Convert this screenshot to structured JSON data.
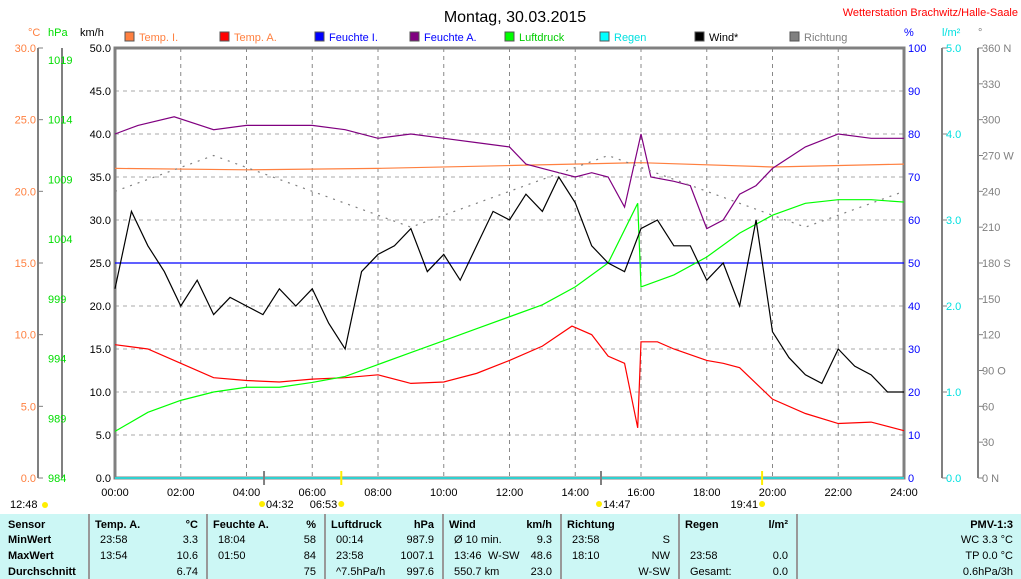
{
  "title": "Montag, 30.03.2015",
  "station": "Wetterstation Brachwitz/Halle-Saale",
  "units": {
    "c": "°C",
    "hpa": "hPa",
    "kmh": "km/h",
    "pct": "%",
    "lm2": "l/m²",
    "deg": "°"
  },
  "legend": [
    {
      "label": "Temp. I.",
      "color": "#ff8040",
      "text": "#ff8040"
    },
    {
      "label": "Temp. A.",
      "color": "#ff0000",
      "text": "#ff8040"
    },
    {
      "label": "Feuchte I.",
      "color": "#0000ff",
      "text": "#0000ff"
    },
    {
      "label": "Feuchte A.",
      "color": "#800080",
      "text": "#0000ff"
    },
    {
      "label": "Luftdruck",
      "color": "#00ff00",
      "text": "#00cc00"
    },
    {
      "label": "Regen",
      "color": "#00ffff",
      "text": "#00e0e0"
    },
    {
      "label": "Wind*",
      "color": "#000000",
      "text": "#000000"
    },
    {
      "label": "Richtung",
      "color": "#808080",
      "text": "#808080"
    }
  ],
  "chart_data": {
    "type": "line",
    "x_ticks": [
      "00:00",
      "02:00",
      "04:00",
      "06:00",
      "08:00",
      "10:00",
      "12:00",
      "14:00",
      "16:00",
      "18:00",
      "20:00",
      "22:00",
      "24:00"
    ],
    "xlim": [
      0,
      24
    ],
    "grid": true,
    "legend_placement": "top",
    "axes": {
      "temp": {
        "ticks": [
          "0.0",
          "5.0",
          "10.0",
          "15.0",
          "20.0",
          "25.0",
          "30.0"
        ],
        "ylim": [
          0,
          30
        ]
      },
      "hpa": {
        "ticks": [
          "984",
          "989",
          "994",
          "999",
          "1004",
          "1009",
          "1014",
          "1019"
        ],
        "ylim": [
          984,
          1020
        ]
      },
      "kmh": {
        "ticks": [
          "0.0",
          "5.0",
          "10.0",
          "15.0",
          "20.0",
          "25.0",
          "30.0",
          "35.0",
          "40.0",
          "45.0",
          "50.0"
        ],
        "ylim": [
          0,
          50
        ]
      },
      "pct": {
        "ticks": [
          "0",
          "10",
          "20",
          "30",
          "40",
          "50",
          "60",
          "70",
          "80",
          "90",
          "100"
        ],
        "ylim": [
          0,
          100
        ]
      },
      "rain": {
        "ticks": [
          "0.0",
          "1.0",
          "2.0",
          "3.0",
          "4.0",
          "5.0"
        ],
        "ylim": [
          0,
          5
        ]
      },
      "dir": {
        "ticks": [
          "0 N",
          "30",
          "60",
          "90 O",
          "120",
          "150",
          "180 S",
          "210",
          "240",
          "270 W",
          "300",
          "330",
          "360 N"
        ],
        "ylim": [
          0,
          360
        ]
      }
    },
    "series": [
      {
        "name": "Temp. I.",
        "axis": "temp",
        "color": "#ff8040",
        "x": [
          0,
          4,
          8,
          12,
          16,
          20,
          24
        ],
        "y": [
          21.6,
          21.5,
          21.6,
          21.8,
          22.0,
          21.7,
          21.9
        ]
      },
      {
        "name": "Temp. A.",
        "axis": "temp",
        "color": "#ff0000",
        "x": [
          0,
          1,
          2,
          3,
          4,
          5,
          6,
          7,
          8,
          9,
          10,
          11,
          12,
          13,
          13.9,
          14.5,
          15,
          15.5,
          15.9,
          16,
          16.5,
          17,
          18,
          18.5,
          19,
          20,
          21,
          22,
          23,
          24
        ],
        "y": [
          9.3,
          9.0,
          8.0,
          7.0,
          6.8,
          6.7,
          6.9,
          7.0,
          7.2,
          6.6,
          6.7,
          7.3,
          8.2,
          9.2,
          10.6,
          10.0,
          8.5,
          8.0,
          3.5,
          9.5,
          9.5,
          9.0,
          8.2,
          8.0,
          7.7,
          5.5,
          4.5,
          3.8,
          3.9,
          3.3
        ]
      },
      {
        "name": "Feuchte I.",
        "axis": "pct",
        "color": "#0000ff",
        "x": [
          0,
          6,
          12,
          18,
          24
        ],
        "y": [
          50,
          50,
          50,
          50,
          50
        ]
      },
      {
        "name": "Feuchte A.",
        "axis": "pct",
        "color": "#800080",
        "x": [
          0,
          0.7,
          1.8,
          3,
          4,
          5,
          6,
          7,
          8,
          9,
          10,
          11,
          12,
          12.5,
          13,
          14,
          14.5,
          15,
          15.5,
          16,
          16.3,
          17,
          17.5,
          18,
          18.5,
          19,
          19.5,
          20,
          21,
          22,
          23,
          24
        ],
        "y": [
          80,
          82,
          84,
          81,
          82,
          82,
          82,
          81,
          79,
          80,
          79,
          78,
          77,
          73,
          72,
          70,
          71,
          70,
          63,
          80,
          70,
          69,
          68,
          58,
          60,
          66,
          68,
          72,
          77,
          80,
          79,
          79
        ]
      },
      {
        "name": "Luftdruck",
        "axis": "hpa",
        "color": "#00ff00",
        "x": [
          0,
          1,
          2,
          3,
          4,
          5,
          6,
          7,
          8,
          9,
          10,
          11,
          12,
          13,
          14,
          15,
          15.9,
          16,
          17,
          18,
          19,
          20,
          21,
          22,
          23,
          24
        ],
        "y": [
          987.9,
          989.5,
          990.5,
          991.2,
          991.6,
          991.6,
          992,
          992.5,
          993.5,
          994.5,
          995.5,
          996.5,
          997.5,
          998.5,
          1000,
          1002,
          1007,
          1000,
          1001,
          1002.5,
          1004.5,
          1006,
          1007,
          1007.3,
          1007.3,
          1007.1
        ]
      },
      {
        "name": "Regen",
        "axis": "rain",
        "color": "#00ffff",
        "x": [
          0,
          24
        ],
        "y": [
          0,
          0
        ]
      },
      {
        "name": "Wind*",
        "axis": "kmh",
        "color": "#000000",
        "x": [
          0,
          0.5,
          1,
          1.5,
          2,
          2.5,
          3,
          3.5,
          4,
          4.5,
          5,
          5.5,
          6,
          6.5,
          7,
          7.5,
          8,
          8.5,
          9,
          9.5,
          10,
          10.5,
          11,
          11.5,
          12,
          12.5,
          13,
          13.5,
          14,
          14.5,
          15,
          15.5,
          16,
          16.5,
          17,
          17.5,
          18,
          18.5,
          19,
          19.5,
          20,
          20.5,
          21,
          21.5,
          22,
          22.5,
          23,
          23.5,
          24
        ],
        "y": [
          22,
          31,
          27,
          24,
          20,
          23,
          19,
          21,
          20,
          19,
          22,
          20,
          22,
          18,
          15,
          24,
          26,
          27,
          29,
          24,
          26,
          23,
          27,
          31,
          30,
          33,
          31,
          35,
          32,
          27,
          25,
          24,
          29,
          30,
          27,
          27,
          23,
          25,
          20,
          30,
          17,
          14,
          12,
          11,
          15,
          13,
          12,
          10,
          10
        ]
      },
      {
        "name": "Richtung",
        "axis": "dir",
        "color": "#808080",
        "x": [
          0,
          3,
          6,
          9,
          12,
          15,
          18,
          21,
          24
        ],
        "y": [
          240,
          270,
          240,
          210,
          240,
          270,
          240,
          210,
          240
        ]
      }
    ],
    "markers": [
      {
        "time": "04:32",
        "label": "04:32",
        "type": "moonrise"
      },
      {
        "time": "06:53",
        "label": "06:53",
        "type": "sunrise"
      },
      {
        "time": "14:47",
        "label": "14:47",
        "type": "moonset"
      },
      {
        "time": "19:41",
        "label": "19:41",
        "type": "sunset"
      }
    ],
    "left_marker": "12:48"
  },
  "table": {
    "sensor": {
      "h": "Sensor",
      "r": [
        "MinWert",
        "MaxWert",
        "Durchschnitt"
      ]
    },
    "temp": {
      "h": "Temp. A.",
      "u": "°C",
      "t": [
        "23:58",
        "13:54",
        ""
      ],
      "v": [
        "3.3",
        "10.6",
        "6.74"
      ]
    },
    "hum": {
      "h": "Feuchte A.",
      "u": "%",
      "t": [
        "18:04",
        "01:50",
        ""
      ],
      "v": [
        "58",
        "84",
        "75"
      ]
    },
    "press": {
      "h": "Luftdruck",
      "u": "hPa",
      "t": [
        "00:14",
        "23:58",
        "^7.5hPa/h"
      ],
      "v": [
        "987.9",
        "1007.1",
        "997.6"
      ]
    },
    "wind": {
      "h": "Wind",
      "u": "km/h",
      "t": [
        "Ø 10 min.",
        "13:46",
        "550.7 km"
      ],
      "m": [
        "",
        "W-SW",
        ""
      ],
      "v": [
        "9.3",
        "48.6",
        "23.0"
      ]
    },
    "dir": {
      "h": "Richtung",
      "t": [
        "23:58",
        "18:10",
        ""
      ],
      "v": [
        "S",
        "NW",
        "W-SW"
      ]
    },
    "rain": {
      "h": "Regen",
      "u": "l/m²",
      "t": [
        "",
        "23:58",
        "Gesamt:"
      ],
      "v": [
        "",
        "0.0",
        "0.0"
      ]
    },
    "pmv": {
      "h": "PMV-1:3",
      "r": [
        "WC 3.3 °C",
        "TP 0.0 °C",
        "0.6hPa/3h"
      ]
    }
  }
}
